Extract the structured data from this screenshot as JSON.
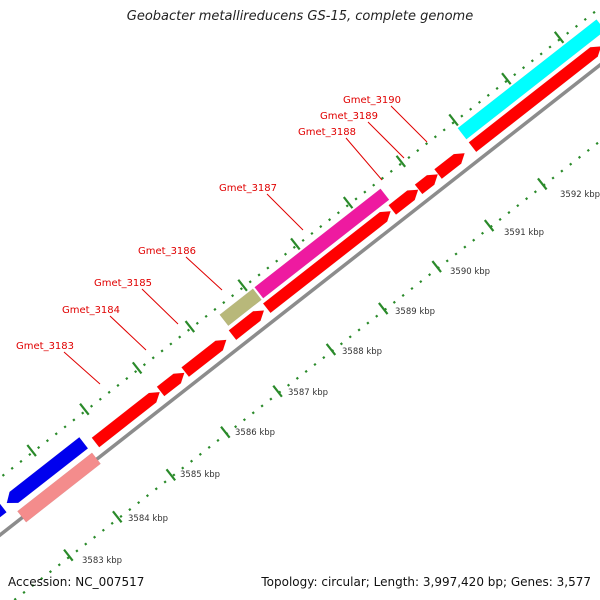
{
  "title": "Geobacter metallireducens GS-15, complete genome",
  "footer": {
    "accession": "Accession: NC_007517",
    "summary": "Topology: circular; Length: 3,997,420 bp; Genes: 3,577"
  },
  "colors": {
    "red": "#ff0000",
    "blue": "#0000ee",
    "pink": "#f48c8c",
    "magenta": "#ee1aa0",
    "olive": "#b8b87a",
    "cyan": "#00ffff",
    "ticks": "#2a8a2a",
    "backbone": "#8c8c8c",
    "label": "#e00000"
  },
  "ticks": [
    {
      "label": "3583 kbp"
    },
    {
      "label": "3584 kbp"
    },
    {
      "label": "3585 kbp"
    },
    {
      "label": "3586 kbp"
    },
    {
      "label": "3587 kbp"
    },
    {
      "label": "3588 kbp"
    },
    {
      "label": "3589 kbp"
    },
    {
      "label": "3590 kbp"
    },
    {
      "label": "3591 kbp"
    },
    {
      "label": "3592 kbp"
    }
  ],
  "gene_labels": [
    {
      "name": "Gmet_3183"
    },
    {
      "name": "Gmet_3184"
    },
    {
      "name": "Gmet_3185"
    },
    {
      "name": "Gmet_3186"
    },
    {
      "name": "Gmet_3187"
    },
    {
      "name": "Gmet_3188"
    },
    {
      "name": "Gmet_3189"
    },
    {
      "name": "Gmet_3190"
    }
  ]
}
